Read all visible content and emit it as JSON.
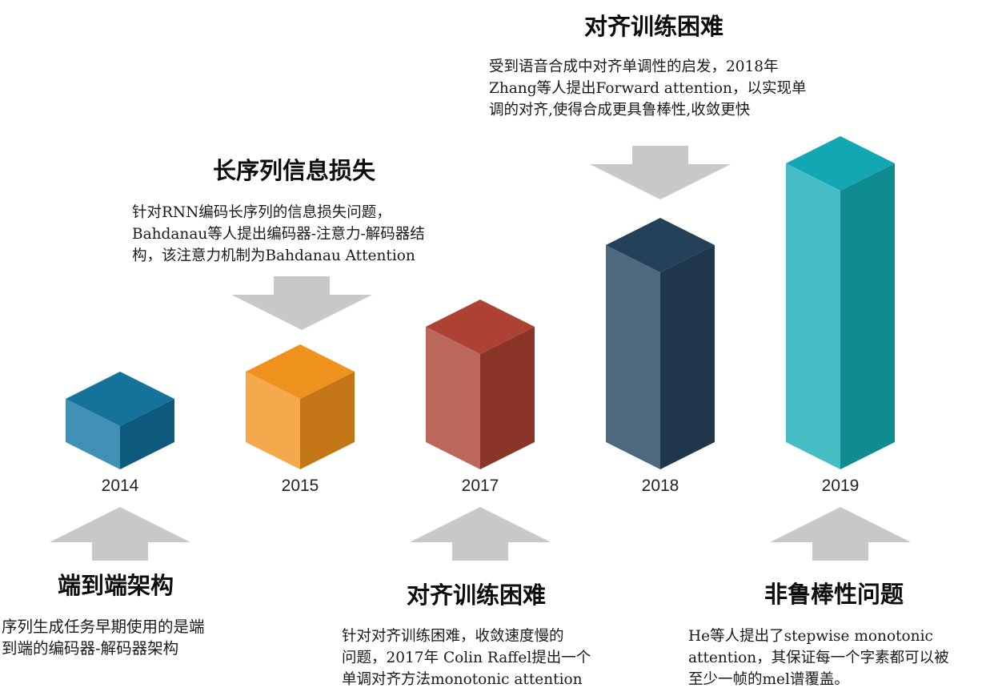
{
  "milestones": [
    {
      "year": "2014",
      "title": "端到端架构",
      "lines": [
        "序列生成任务早期使用的是端",
        "到端的编码器-解码器架构"
      ],
      "colors": {
        "top": "#14729b",
        "left": "#4190b5",
        "right": "#0e5a7d"
      }
    },
    {
      "year": "2015",
      "title": "长序列信息损失",
      "lines": [
        "针对RNN编码长序列的信息损失问题，",
        "Bahdanau等人提出编码器-注意力-解码器结",
        "构，该注意力机制为Bahdanau Attention"
      ],
      "colors": {
        "top": "#f0921e",
        "left": "#f4aa4c",
        "right": "#c47617"
      }
    },
    {
      "year": "2017",
      "title": "对齐训练困难",
      "lines": [
        "针对对齐训练困难，收敛速度慢的",
        "问题，2017年 Colin Raffel提出一个",
        "单调对齐方法monotonic attention"
      ],
      "colors": {
        "top": "#ad4234",
        "left": "#bb685b",
        "right": "#8b3529"
      }
    },
    {
      "year": "2018",
      "title": "对齐训练困难",
      "lines": [
        "受到语音合成中对齐单调性的启发，2018年",
        "Zhang等人提出Forward attention，以实现单",
        "调的对齐,使得合成更具鲁棒性,收敛更快"
      ],
      "colors": {
        "top": "#23425a",
        "left": "#4f6a7e",
        "right": "#1f364b"
      }
    },
    {
      "year": "2019",
      "title": "非鲁棒性问题",
      "lines": [
        "He等人提出了stepwise monotonic",
        "attention，其保证每一个字素都可以被",
        "至少一帧的mel谱覆盖。"
      ],
      "colors": {
        "top": "#12a7b3",
        "left": "#46bcc4",
        "right": "#0f8c90"
      }
    }
  ],
  "arrow_color": "#c8c8c8"
}
